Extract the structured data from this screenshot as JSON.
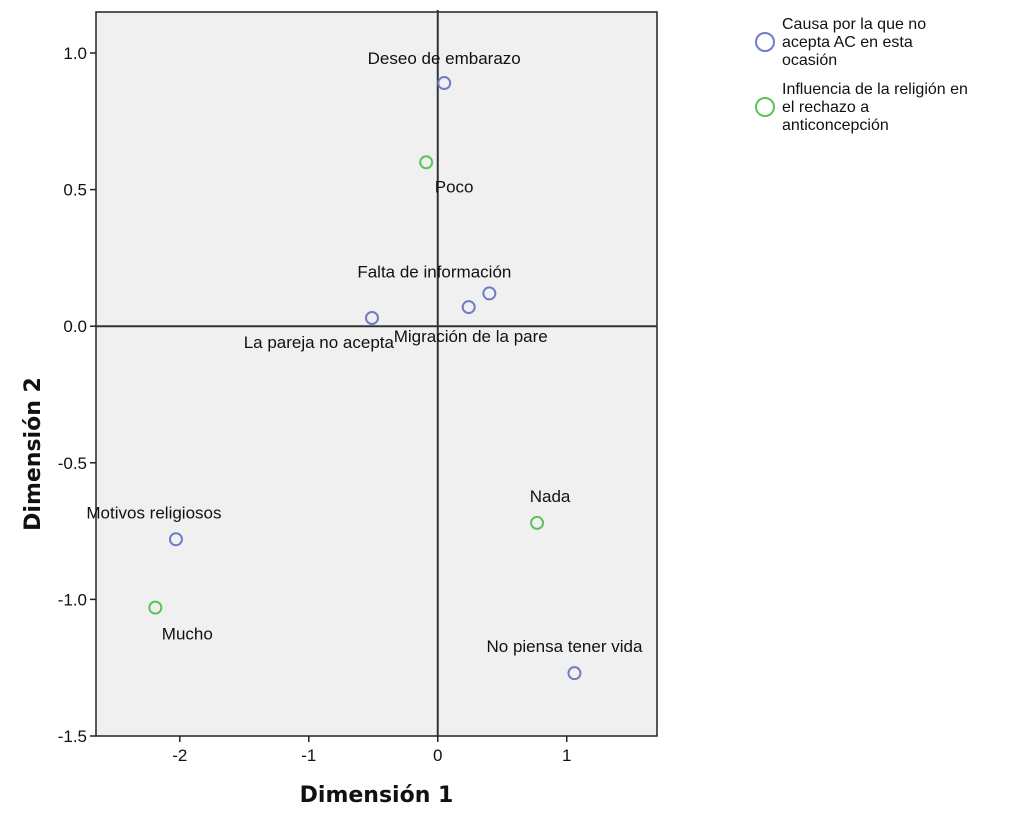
{
  "chart_data": {
    "type": "scatter",
    "title": "",
    "xlabel": "Dimensión 1",
    "ylabel": "Dimensión 2",
    "xlim": [
      -2.65,
      1.7
    ],
    "ylim": [
      -1.5,
      1.15
    ],
    "x_ticks": [
      "-2",
      "-1",
      "0",
      "1"
    ],
    "y_ticks": [
      "-1.5",
      "-1.0",
      "-0.5",
      "0.0",
      "0.5",
      "1.0"
    ],
    "grid": false,
    "legend_position": "top-right",
    "series": [
      {
        "name": "Causa por la que no acepta AC en esta ocasión",
        "legend_lines": [
          "Causa por la que no",
          "acepta AC en esta",
          "ocasión"
        ],
        "color": "#6f7dc4",
        "points": [
          {
            "label": "Deseo de embarazo",
            "x": 0.05,
            "y": 0.89
          },
          {
            "label": "Falta de información",
            "x": 0.4,
            "y": 0.12
          },
          {
            "label": "Migración de la pare",
            "x": 0.24,
            "y": 0.07
          },
          {
            "label": "La pareja no acepta",
            "x": -0.51,
            "y": 0.03
          },
          {
            "label": "Motivos religiosos",
            "x": -2.03,
            "y": -0.78
          },
          {
            "label": "No piensa tener vida",
            "x": 1.06,
            "y": -1.27
          }
        ]
      },
      {
        "name": "Influencia de la religión en el rechazo a anticoncepción",
        "legend_lines": [
          "Influencia de la religión en",
          "el rechazo a",
          "anticoncepción"
        ],
        "color": "#5cc25c",
        "points": [
          {
            "label": "Poco",
            "x": -0.09,
            "y": 0.6
          },
          {
            "label": "Nada",
            "x": 0.77,
            "y": -0.72
          },
          {
            "label": "Mucho",
            "x": -2.19,
            "y": -1.03
          }
        ]
      }
    ]
  }
}
